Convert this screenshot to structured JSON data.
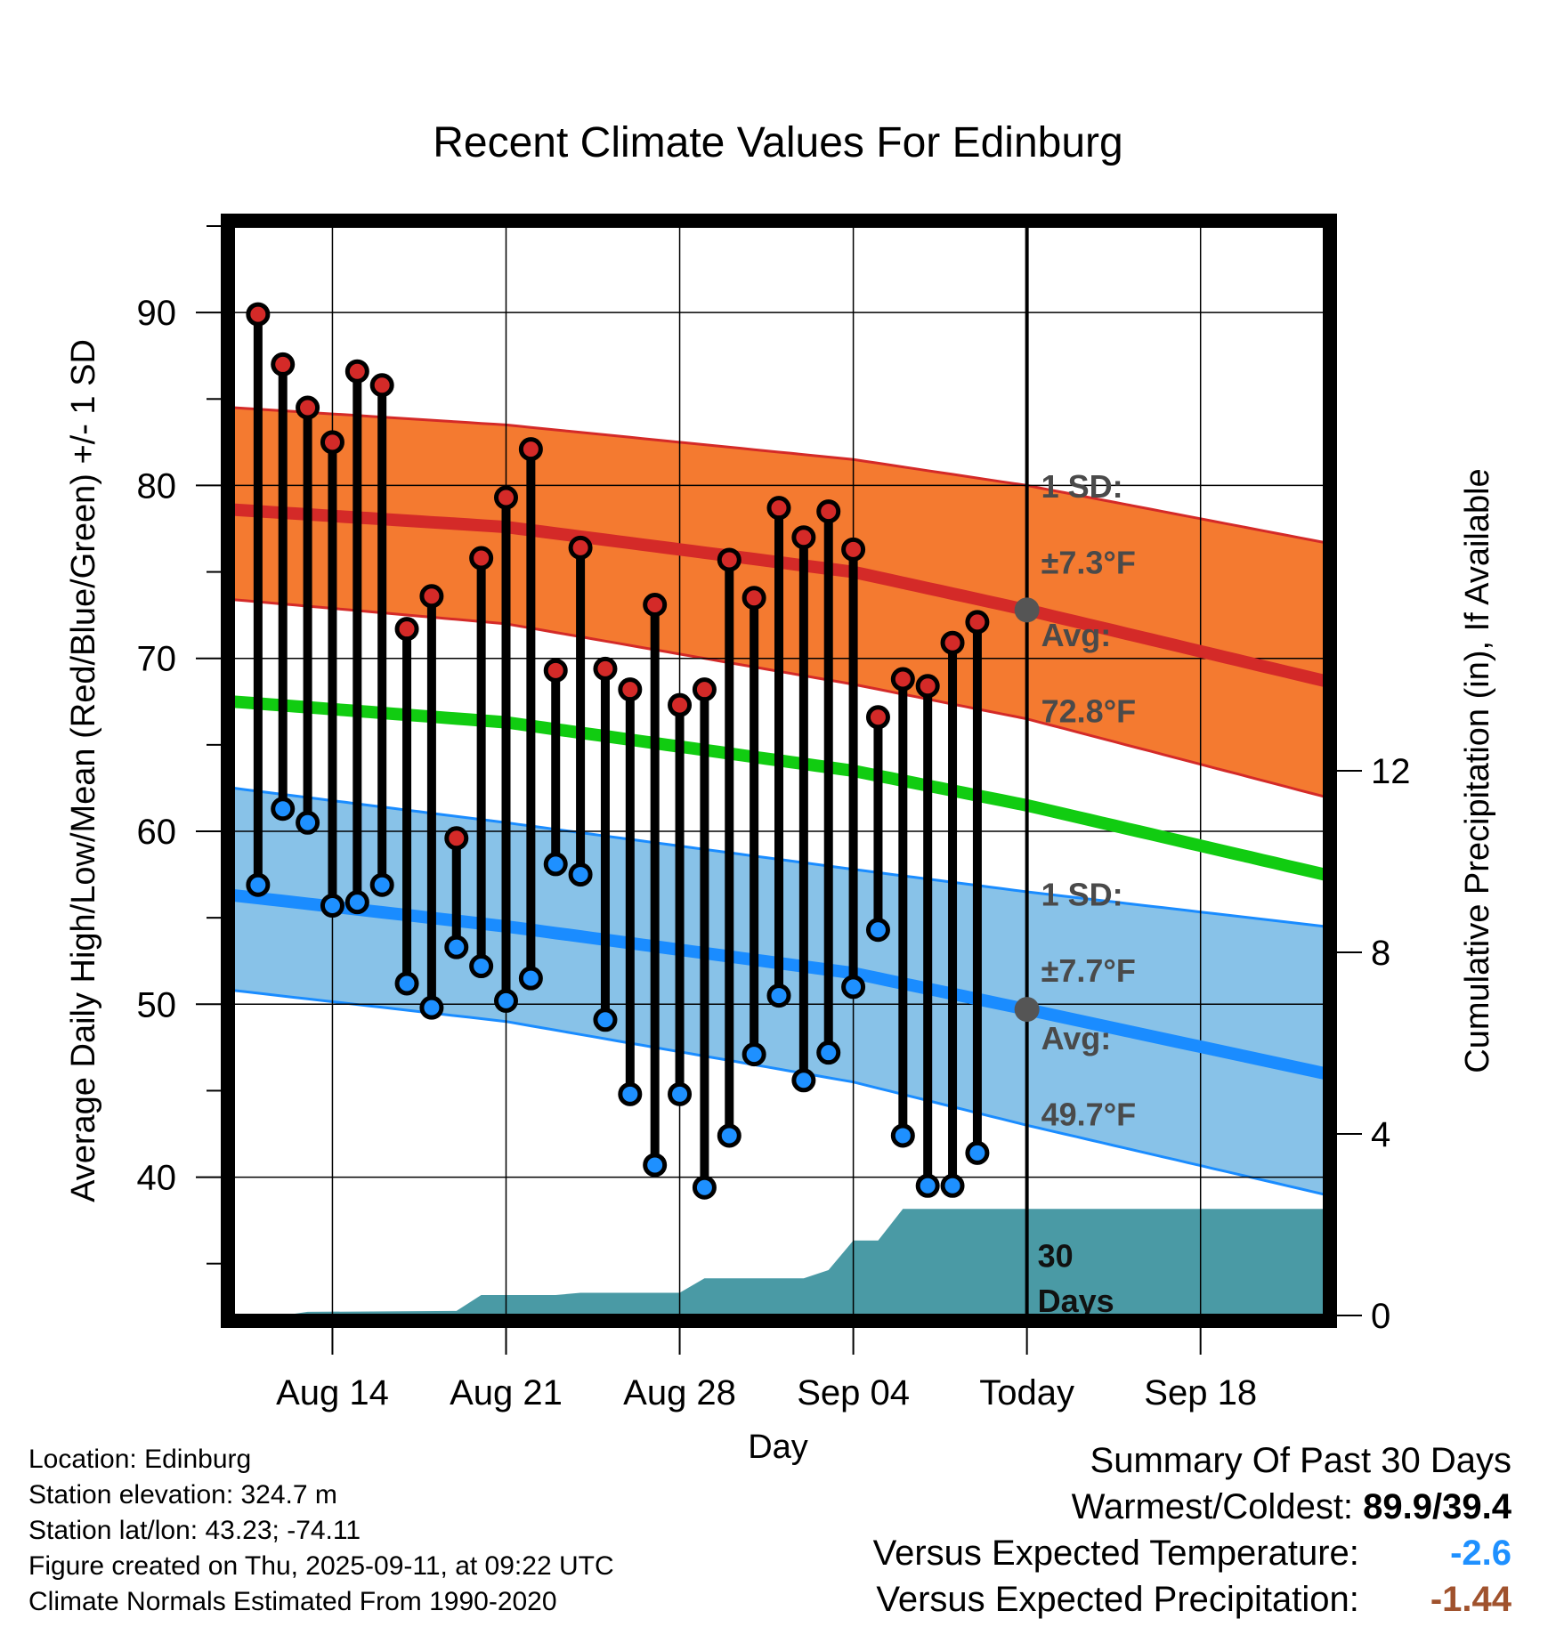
{
  "chart_data": {
    "type": "line",
    "title": "Recent Climate Values For Edinburg",
    "xlabel": "Day",
    "ylabel": "Average Daily High/Low/Mean (Red/Blue/Green) +/- 1 SD",
    "y2label": "Cumulative Precipitation (in), If Available",
    "ylim": [
      32,
      95
    ],
    "y2lim": [
      0,
      24
    ],
    "yticks": [
      40,
      50,
      60,
      70,
      80,
      90
    ],
    "y2ticks": [
      0,
      4,
      8,
      12
    ],
    "xlim": [
      "2025-08-10",
      "2025-09-23"
    ],
    "xticks": [
      {
        "date": "2025-08-14",
        "label": "Aug 14"
      },
      {
        "date": "2025-08-21",
        "label": "Aug 21"
      },
      {
        "date": "2025-08-28",
        "label": "Aug 28"
      },
      {
        "date": "2025-09-04",
        "label": "Sep 04"
      },
      {
        "date": "2025-09-11",
        "label": "Today"
      },
      {
        "date": "2025-09-18",
        "label": "Sep 18"
      }
    ],
    "today": "2025-09-11",
    "grid": true,
    "normals": {
      "dates": [
        "2025-08-10",
        "2025-08-21",
        "2025-09-04",
        "2025-09-11",
        "2025-09-23"
      ],
      "high_avg": [
        78.6,
        77.6,
        75.0,
        72.8,
        68.7
      ],
      "high_upper": [
        84.5,
        83.5,
        81.5,
        80.0,
        76.7
      ],
      "high_lower": [
        73.4,
        72.0,
        68.5,
        66.5,
        62.0
      ],
      "mean_avg": [
        67.5,
        66.3,
        63.5,
        61.5,
        57.5
      ],
      "low_avg": [
        56.3,
        54.5,
        51.8,
        49.7,
        46.0
      ],
      "low_upper": [
        62.5,
        60.5,
        57.8,
        56.5,
        54.5
      ],
      "low_lower": [
        50.8,
        49.0,
        45.5,
        43.0,
        39.0
      ]
    },
    "observations": {
      "dates": [
        "2025-08-11",
        "2025-08-12",
        "2025-08-13",
        "2025-08-14",
        "2025-08-15",
        "2025-08-16",
        "2025-08-17",
        "2025-08-18",
        "2025-08-19",
        "2025-08-20",
        "2025-08-21",
        "2025-08-22",
        "2025-08-23",
        "2025-08-24",
        "2025-08-25",
        "2025-08-26",
        "2025-08-27",
        "2025-08-28",
        "2025-08-29",
        "2025-08-30",
        "2025-08-31",
        "2025-09-01",
        "2025-09-02",
        "2025-09-03",
        "2025-09-04",
        "2025-09-05",
        "2025-09-06",
        "2025-09-07",
        "2025-09-08",
        "2025-09-09",
        "2025-09-10"
      ],
      "high": [
        89.9,
        87.0,
        84.5,
        82.5,
        86.6,
        85.8,
        71.7,
        73.6,
        59.6,
        75.8,
        79.3,
        82.1,
        69.3,
        76.4,
        69.4,
        68.2,
        73.1,
        67.3,
        68.2,
        75.7,
        73.5,
        78.7,
        77.0,
        78.5,
        76.3,
        66.6,
        68.8,
        68.4,
        70.9,
        72.1,
        null
      ],
      "low": [
        56.9,
        61.3,
        60.5,
        55.7,
        55.9,
        56.9,
        51.2,
        49.8,
        53.3,
        52.2,
        50.2,
        51.5,
        58.1,
        57.5,
        49.1,
        44.8,
        40.7,
        44.8,
        39.4,
        42.4,
        47.1,
        50.5,
        45.6,
        47.2,
        51.0,
        54.3,
        42.4,
        39.5,
        39.5,
        41.4,
        null
      ]
    },
    "precipitation_cumulative": {
      "dates": [
        "2025-08-10",
        "2025-08-12",
        "2025-08-13",
        "2025-08-19",
        "2025-08-20",
        "2025-08-22",
        "2025-08-23",
        "2025-08-24",
        "2025-08-28",
        "2025-08-29",
        "2025-09-02",
        "2025-09-03",
        "2025-09-04",
        "2025-09-05",
        "2025-09-06",
        "2025-09-23"
      ],
      "values": [
        0.0,
        0.0,
        0.08,
        0.1,
        0.45,
        0.45,
        0.45,
        0.5,
        0.5,
        0.82,
        0.82,
        1.0,
        1.65,
        1.65,
        2.35,
        2.35
      ]
    },
    "annotations": {
      "high_sd": "±7.3°F",
      "high_avg": "72.8°F",
      "low_sd": "±7.7°F",
      "low_avg": "49.7°F",
      "sd_label": "1 SD:",
      "avg_label": "Avg:",
      "days_label": "30",
      "days_word": "Days"
    },
    "colors": {
      "high_band": "#f47a30",
      "high_line": "#d42a28",
      "mean_line": "#11cc11",
      "low_band": "#88c2e8",
      "low_line": "#1a8cff",
      "precip": "#4a9aa5",
      "high_marker": "#d42a28",
      "low_marker": "#1e90ff"
    }
  },
  "footer": {
    "location": "Location: Edinburg",
    "elevation": "Station elevation: 324.7 m",
    "latlon": "Station lat/lon: 43.23; -74.11",
    "created": "Figure created on Thu, 2025-09-11, at 09:22 UTC",
    "normals": "Climate Normals Estimated From 1990-2020"
  },
  "summary": {
    "title": "Summary Of Past 30 Days",
    "warm_cold_label": "Warmest/Coldest:",
    "warm_cold_value": "89.9/39.4",
    "temp_label": "Versus Expected Temperature:",
    "temp_value": "-2.6",
    "temp_color": "#1e90ff",
    "precip_label": "Versus Expected Precipitation:",
    "precip_value": "-1.44",
    "precip_color": "#a0522d"
  }
}
